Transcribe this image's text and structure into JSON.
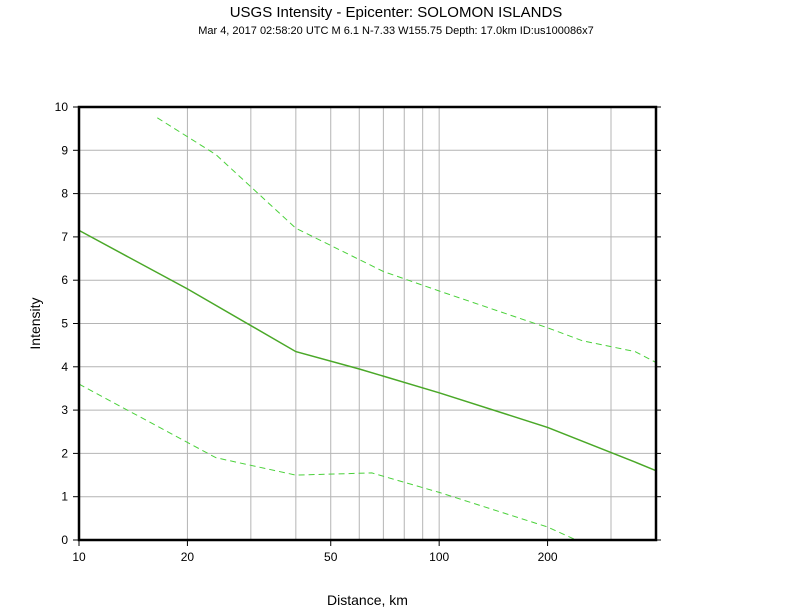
{
  "title": "USGS Intensity -  Epicenter: SOLOMON ISLANDS",
  "subtitle": "Mar  4, 2017 02:58:20 UTC   M 6.1    N-7.33 W155.75    Depth: 17.0km   ID:us100086x7",
  "chart_data": {
    "type": "line",
    "xlabel": "Distance, km",
    "ylabel": "Intensity",
    "x_scale": "log",
    "xlim": [
      10,
      400
    ],
    "ylim": [
      0,
      10
    ],
    "x_ticks": [
      10,
      20,
      50,
      100,
      200
    ],
    "y_ticks": [
      0,
      1,
      2,
      3,
      4,
      5,
      6,
      7,
      8,
      9,
      10
    ],
    "grid": true,
    "series": [
      {
        "style": "solid",
        "color": "#4aa828",
        "points": [
          [
            10,
            7.15
          ],
          [
            20,
            5.8
          ],
          [
            40,
            4.35
          ],
          [
            60,
            3.95
          ],
          [
            100,
            3.4
          ],
          [
            200,
            2.6
          ],
          [
            350,
            1.8
          ],
          [
            400,
            1.6
          ]
        ]
      },
      {
        "style": "dashed",
        "color": "#4ad13a",
        "points": [
          [
            16.5,
            9.75
          ],
          [
            24,
            8.9
          ],
          [
            40,
            7.2
          ],
          [
            70,
            6.2
          ],
          [
            100,
            5.75
          ],
          [
            200,
            4.9
          ],
          [
            250,
            4.6
          ],
          [
            350,
            4.35
          ],
          [
            400,
            4.1
          ]
        ]
      },
      {
        "style": "dashed",
        "color": "#4ad13a",
        "points": [
          [
            10,
            3.6
          ],
          [
            24,
            1.9
          ],
          [
            40,
            1.5
          ],
          [
            65,
            1.55
          ],
          [
            100,
            1.1
          ],
          [
            200,
            0.3
          ],
          [
            240,
            0.0
          ]
        ]
      }
    ]
  }
}
